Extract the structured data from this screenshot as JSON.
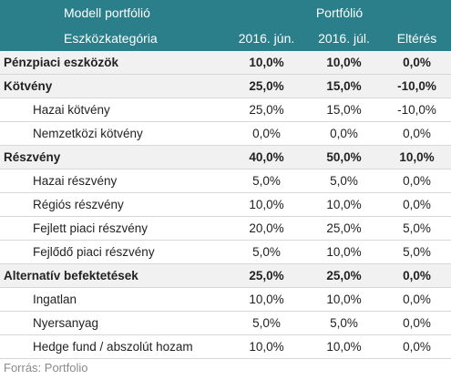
{
  "header": {
    "model_label": "Modell portfólió",
    "portfolio_label": "Portfólió",
    "category_label": "Eszközkategória",
    "col_jun": "2016. jún.",
    "col_jul": "2016. júl.",
    "col_diff": "Eltérés"
  },
  "rows": [
    {
      "kind": "cat",
      "label": "Pénzpiaci eszközök",
      "jun": "10,0%",
      "jul": "10,0%",
      "diff": "0,0%"
    },
    {
      "kind": "cat",
      "label": "Kötvény",
      "jun": "25,0%",
      "jul": "15,0%",
      "diff": "-10,0%"
    },
    {
      "kind": "sub",
      "label": "Hazai kötvény",
      "jun": "25,0%",
      "jul": "15,0%",
      "diff": "-10,0%"
    },
    {
      "kind": "sub",
      "label": "Nemzetközi kötvény",
      "jun": "0,0%",
      "jul": "0,0%",
      "diff": "0,0%"
    },
    {
      "kind": "cat",
      "label": "Részvény",
      "jun": "40,0%",
      "jul": "50,0%",
      "diff": "10,0%"
    },
    {
      "kind": "sub",
      "label": "Hazai részvény",
      "jun": "5,0%",
      "jul": "5,0%",
      "diff": "0,0%"
    },
    {
      "kind": "sub",
      "label": "Régiós részvény",
      "jun": "10,0%",
      "jul": "10,0%",
      "diff": "0,0%"
    },
    {
      "kind": "sub",
      "label": "Fejlett piaci részvény",
      "jun": "20,0%",
      "jul": "25,0%",
      "diff": "5,0%"
    },
    {
      "kind": "sub",
      "label": "Fejlődő piaci részvény",
      "jun": "5,0%",
      "jul": "10,0%",
      "diff": "5,0%"
    },
    {
      "kind": "cat",
      "label": "Alternatív befektetések",
      "jun": "25,0%",
      "jul": "25,0%",
      "diff": "0,0%"
    },
    {
      "kind": "sub",
      "label": "Ingatlan",
      "jun": "10,0%",
      "jul": "10,0%",
      "diff": "0,0%"
    },
    {
      "kind": "sub",
      "label": "Nyersanyag",
      "jun": "5,0%",
      "jul": "5,0%",
      "diff": "0,0%"
    },
    {
      "kind": "sub",
      "label": "Hedge fund / abszolút hozam",
      "jun": "10,0%",
      "jul": "10,0%",
      "diff": "0,0%"
    }
  ],
  "source": "Forrás: Portfolio",
  "colors": {
    "header_bg": "#2a7f8a",
    "header_text": "#ffffff"
  }
}
